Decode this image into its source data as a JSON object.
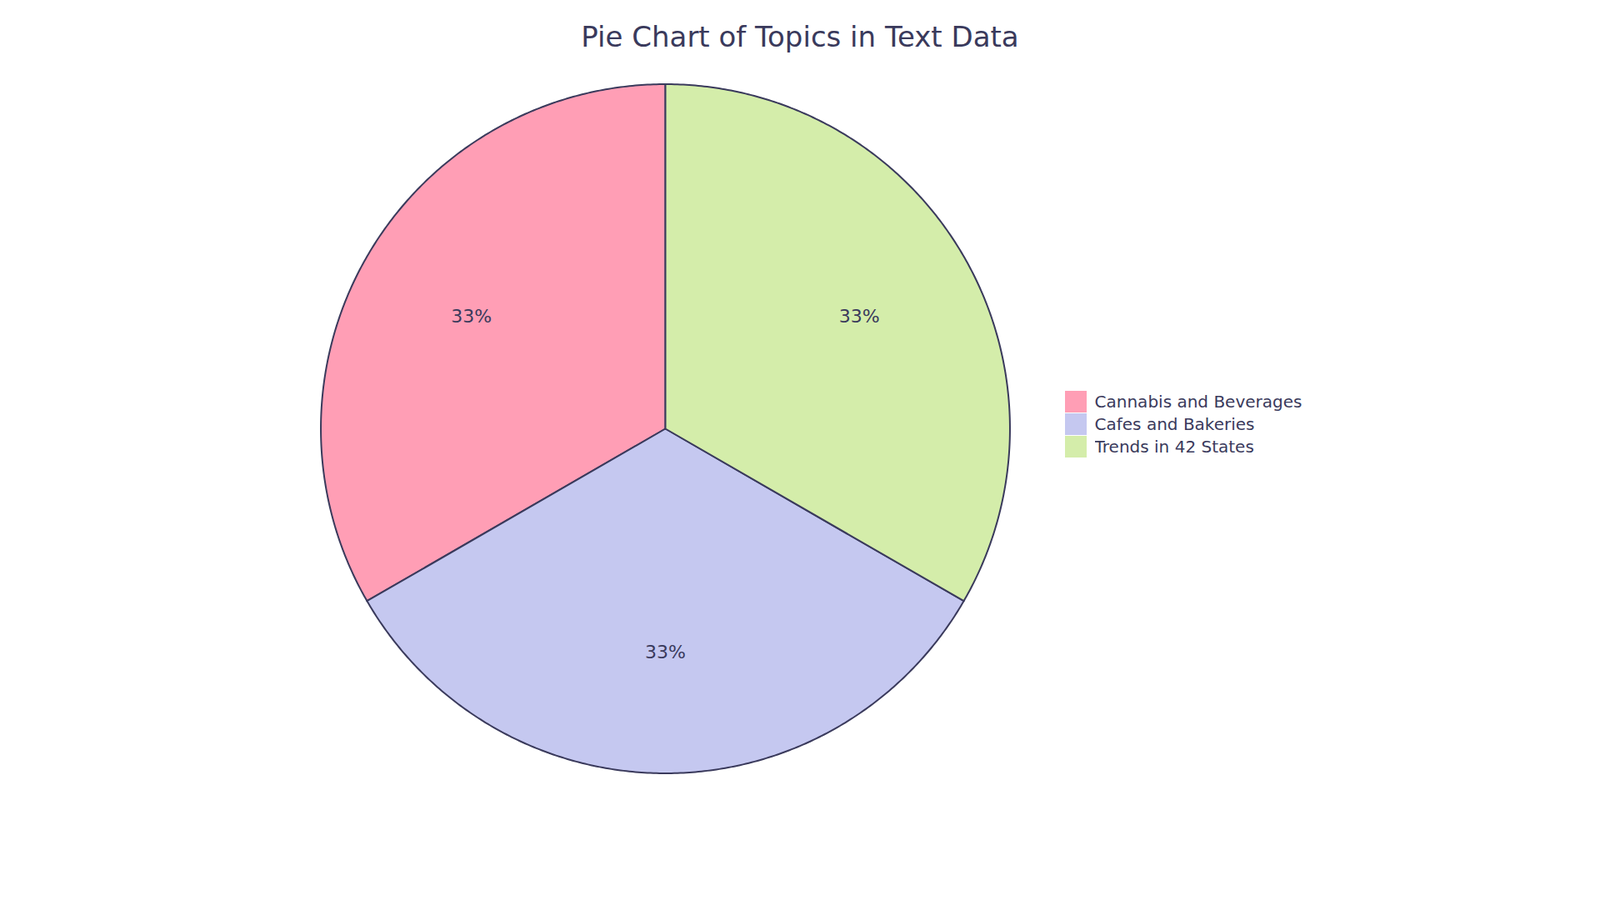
{
  "chart_data": {
    "type": "pie",
    "title": "Pie Chart of Topics in Text Data",
    "categories": [
      "Cannabis and Beverages",
      "Cafes and Bakeries",
      "Trends in 42 States"
    ],
    "values": [
      33,
      33,
      33
    ],
    "value_labels": [
      "33%",
      "33%",
      "33%"
    ],
    "colors": [
      "#FF9EB5",
      "#C5C8F0",
      "#D4EDAA"
    ],
    "data_labels": true,
    "legend": "right"
  }
}
